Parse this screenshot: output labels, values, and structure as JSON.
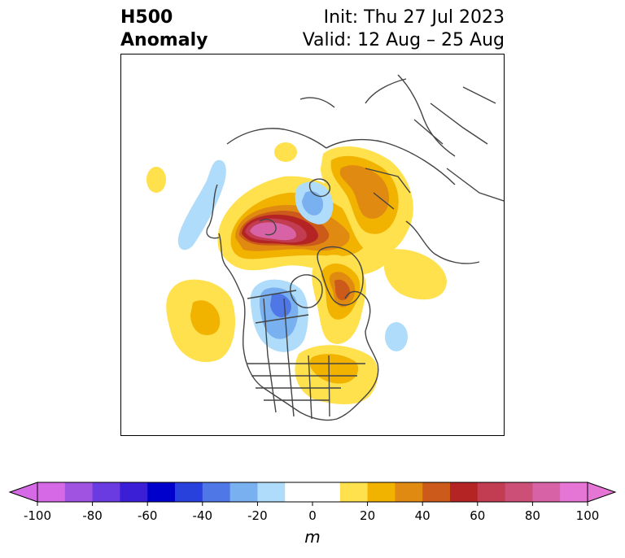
{
  "title": {
    "left_line1": "H500",
    "left_line2": "Anomaly",
    "right_line1": "Init: Thu 27 Jul 2023",
    "right_line2": "Valid: 12 Aug – 25 Aug"
  },
  "colorbar": {
    "unit": "m",
    "tick_labels": [
      "-100",
      "-80",
      "-60",
      "-40",
      "-20",
      "0",
      "20",
      "40",
      "60",
      "80",
      "100"
    ],
    "colors": [
      "#d66ae6",
      "#9f53e0",
      "#6a3be0",
      "#3b1fd6",
      "#0000cc",
      "#2840dc",
      "#4f78e6",
      "#78b0f0",
      "#aedcfa",
      "#ffffff",
      "#ffffff",
      "#ffe04d",
      "#f2b200",
      "#e08a12",
      "#cc5a1a",
      "#b52424",
      "#c23c52",
      "#cc4f78",
      "#d762a6",
      "#e676d6"
    ],
    "extend_low_color": "#d66ae6",
    "extend_high_color": "#e676d6"
  }
}
